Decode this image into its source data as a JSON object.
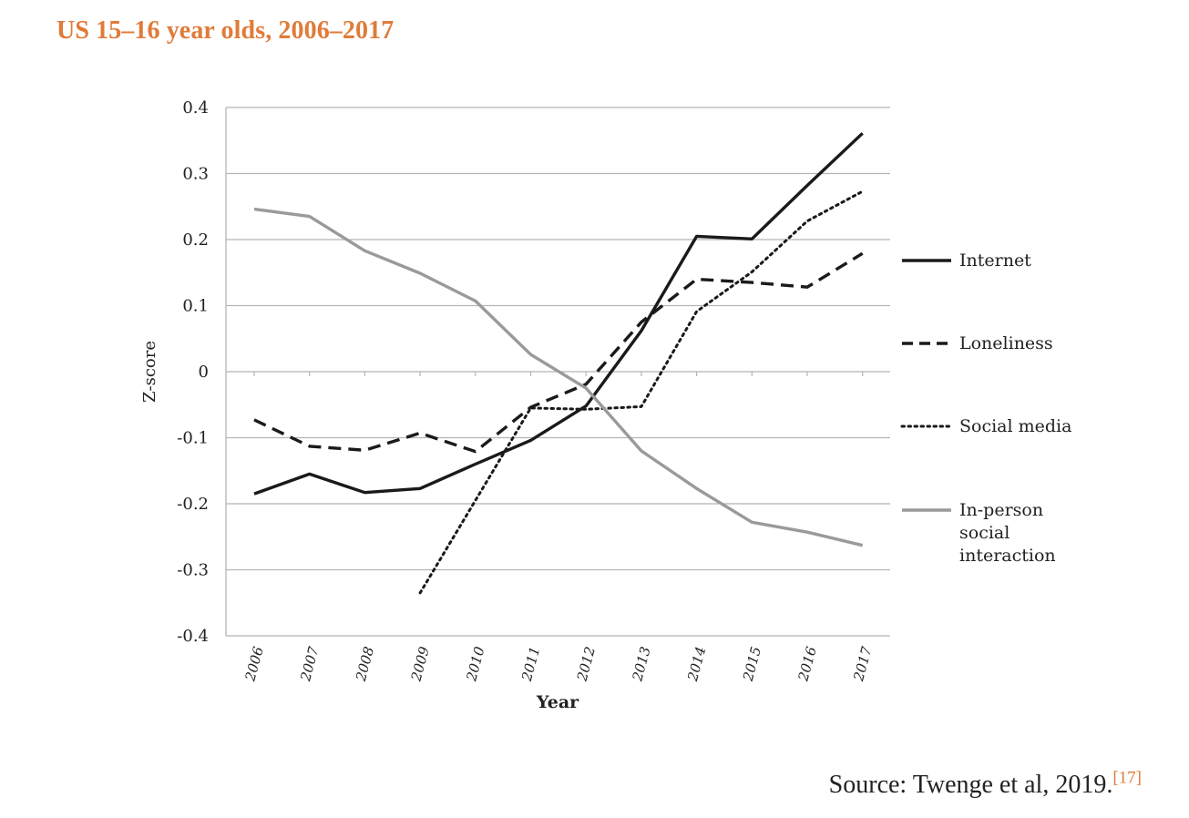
{
  "page": {
    "title": "US 15–16 year olds, 2006–2017",
    "source_text": "Source: Twenge et al, 2019.",
    "source_ref": "[17]"
  },
  "chart_data": {
    "type": "line",
    "title": "",
    "xlabel": "Year",
    "ylabel": "Z-score",
    "x": [
      "2006",
      "2007",
      "2008",
      "2009",
      "2010",
      "2011",
      "2012",
      "2013",
      "2014",
      "2015",
      "2016",
      "2017"
    ],
    "ylim": [
      -0.4,
      0.4
    ],
    "yticks": [
      0.4,
      0.3,
      0.2,
      0.1,
      0,
      -0.1,
      -0.2,
      -0.3,
      -0.4
    ],
    "ytick_labels": [
      "0.4",
      "0.3",
      "0.2",
      "0.1",
      "0",
      "-0.1",
      "-0.2",
      "-0.3",
      "-0.4"
    ],
    "grid": "horizontal",
    "legend_position": "right",
    "series": [
      {
        "name": "Internet",
        "style": "solid",
        "color": "#1a1a1a",
        "values": [
          -0.185,
          -0.155,
          -0.183,
          -0.177,
          -0.14,
          -0.104,
          -0.052,
          0.062,
          0.205,
          0.201,
          0.282,
          0.361
        ]
      },
      {
        "name": "Loneliness",
        "style": "dashed",
        "color": "#1a1a1a",
        "values": [
          -0.073,
          -0.113,
          -0.119,
          -0.093,
          -0.121,
          -0.054,
          -0.019,
          0.075,
          0.14,
          0.135,
          0.128,
          0.179
        ]
      },
      {
        "name": "Social media",
        "style": "dotted",
        "color": "#1a1a1a",
        "values": [
          null,
          null,
          null,
          -0.335,
          -0.195,
          -0.055,
          -0.057,
          -0.053,
          0.091,
          0.151,
          0.228,
          0.273
        ]
      },
      {
        "name": "In-person social interaction",
        "name_lines": [
          "In-person",
          "social",
          "interaction"
        ],
        "style": "solid",
        "color": "#9a9a9a",
        "values": [
          0.246,
          0.235,
          0.183,
          0.149,
          0.107,
          0.026,
          -0.025,
          -0.12,
          -0.177,
          -0.228,
          -0.243,
          -0.263
        ]
      }
    ]
  }
}
